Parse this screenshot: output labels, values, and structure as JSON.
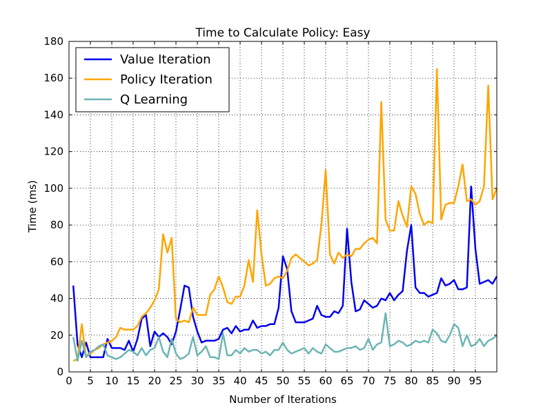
{
  "chart_data": {
    "type": "line",
    "title": "Time to Calculate Policy: Easy",
    "xlabel": "Number of Iterations",
    "ylabel": "Time (ms)",
    "xlim": [
      0,
      100
    ],
    "ylim": [
      0,
      180
    ],
    "xticks": [
      0,
      5,
      10,
      15,
      20,
      25,
      30,
      35,
      40,
      45,
      50,
      55,
      60,
      65,
      70,
      75,
      80,
      85,
      90,
      95
    ],
    "yticks": [
      0,
      20,
      40,
      60,
      80,
      100,
      120,
      140,
      160,
      180
    ],
    "grid": true,
    "legend": "top-left",
    "x": [
      1,
      2,
      3,
      4,
      5,
      6,
      7,
      8,
      9,
      10,
      11,
      12,
      13,
      14,
      15,
      16,
      17,
      18,
      19,
      20,
      21,
      22,
      23,
      24,
      25,
      26,
      27,
      28,
      29,
      30,
      31,
      32,
      33,
      34,
      35,
      36,
      37,
      38,
      39,
      40,
      41,
      42,
      43,
      44,
      45,
      46,
      47,
      48,
      49,
      50,
      51,
      52,
      53,
      54,
      55,
      56,
      57,
      58,
      59,
      60,
      61,
      62,
      63,
      64,
      65,
      66,
      67,
      68,
      69,
      70,
      71,
      72,
      73,
      74,
      75,
      76,
      77,
      78,
      79,
      80,
      81,
      82,
      83,
      84,
      85,
      86,
      87,
      88,
      89,
      90,
      91,
      92,
      93,
      94,
      95,
      96,
      97,
      98,
      99,
      100
    ],
    "series": [
      {
        "name": "Value Iteration",
        "color": "#0000ee",
        "values": [
          47,
          15,
          8,
          16,
          8,
          8,
          8,
          8,
          18,
          13,
          13,
          13,
          12,
          17,
          11,
          18,
          29,
          31,
          14,
          22,
          19,
          21,
          19,
          15,
          22,
          34,
          47,
          46,
          30,
          22,
          16,
          17,
          17,
          17,
          18,
          23,
          24,
          21,
          25,
          22,
          23,
          23,
          28,
          24,
          25,
          25,
          26,
          26,
          35,
          63,
          56,
          33,
          27,
          27,
          27,
          28,
          29,
          36,
          31,
          30,
          30,
          33,
          32,
          36,
          78,
          49,
          33,
          34,
          39,
          37,
          35,
          36,
          40,
          39,
          43,
          39,
          42,
          44,
          66,
          80,
          46,
          43,
          43,
          41,
          42,
          43,
          51,
          47,
          48,
          50,
          45,
          45,
          46,
          101,
          67,
          48,
          49,
          50,
          48,
          52
        ]
      },
      {
        "name": "Policy Iteration",
        "color": "#ffa500",
        "values": [
          6,
          7,
          26,
          8,
          10,
          12,
          13,
          15,
          16,
          17,
          19,
          24,
          23,
          23,
          23,
          25,
          30,
          32,
          35,
          39,
          45,
          75,
          65,
          73,
          29,
          27,
          28,
          27,
          35,
          31,
          31,
          31,
          42,
          45,
          52,
          46,
          38,
          37,
          41,
          41,
          47,
          61,
          49,
          88,
          64,
          47,
          48,
          51,
          52,
          51,
          55,
          62,
          64,
          62,
          60,
          58,
          59,
          61,
          80,
          110,
          64,
          59,
          65,
          62,
          64,
          63,
          67,
          67,
          70,
          72,
          73,
          70,
          147,
          83,
          77,
          77,
          93,
          85,
          79,
          101,
          97,
          86,
          80,
          82,
          81,
          165,
          83,
          91,
          92,
          92,
          101,
          113,
          93,
          94,
          91,
          93,
          101,
          156,
          94,
          100
        ]
      },
      {
        "name": "Q Learning",
        "color": "#6cb4b4",
        "values": [
          19,
          6,
          17,
          8,
          11,
          12,
          14,
          15,
          9,
          8,
          7,
          8,
          10,
          12,
          11,
          9,
          13,
          9,
          12,
          13,
          19,
          11,
          8,
          18,
          10,
          7,
          8,
          10,
          19,
          9,
          11,
          14,
          8,
          8,
          7,
          21,
          9,
          9,
          12,
          10,
          13,
          11,
          12,
          12,
          10,
          11,
          9,
          12,
          12,
          16,
          12,
          10,
          11,
          12,
          13,
          10,
          13,
          11,
          10,
          15,
          13,
          11,
          11,
          12,
          13,
          13,
          14,
          12,
          13,
          18,
          12,
          15,
          16,
          32,
          14,
          15,
          17,
          16,
          14,
          15,
          17,
          16,
          17,
          16,
          23,
          21,
          17,
          16,
          20,
          26,
          24,
          14,
          20,
          14,
          15,
          18,
          14,
          17,
          18,
          20
        ]
      }
    ]
  }
}
